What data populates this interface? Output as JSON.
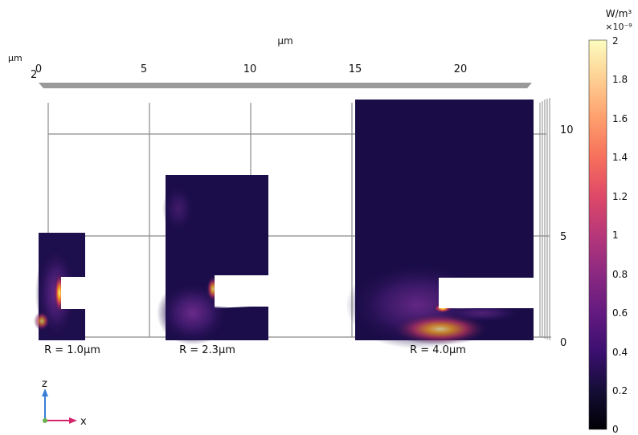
{
  "axes": {
    "top_unit": "µm",
    "side_unit": "µm",
    "corner_tick": "2",
    "x_ticks": [
      "0",
      "5",
      "10",
      "15",
      "20"
    ],
    "z_ticks": [
      "10",
      "5",
      "0"
    ]
  },
  "geometries": [
    {
      "label": "R = 1.0µm"
    },
    {
      "label": "R = 2.3µm"
    },
    {
      "label": "R = 4.0µm"
    }
  ],
  "colorbar": {
    "unit": "W/m³",
    "exponent": "×10⁻⁹",
    "ticks": [
      "2",
      "1.8",
      "1.6",
      "1.4",
      "1.2",
      "1",
      "0.8",
      "0.6",
      "0.4",
      "0.2",
      "0"
    ],
    "colors": [
      "#fdffa5",
      "#fbd231",
      "#f8a30f",
      "#ef6a1f",
      "#d94347",
      "#b22b63",
      "#87216b",
      "#5a1f6b",
      "#36195e",
      "#1a0d3d",
      "#06051a"
    ]
  },
  "triad": {
    "z": "z",
    "x": "x"
  }
}
